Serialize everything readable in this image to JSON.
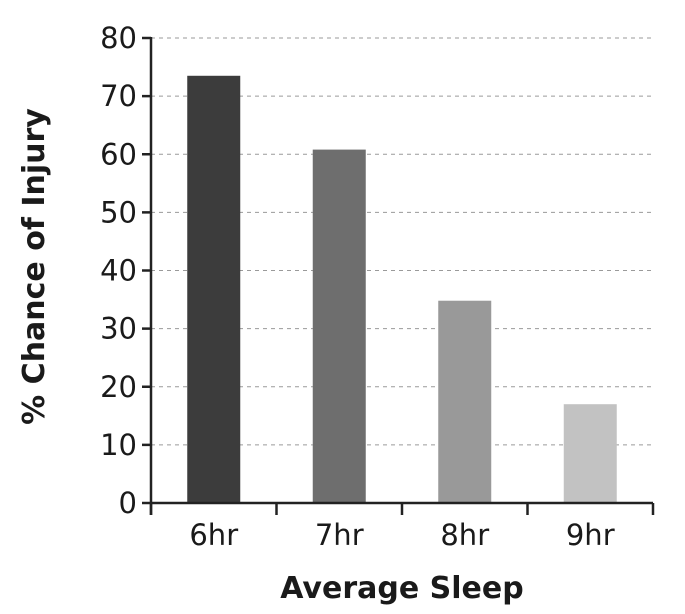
{
  "chart_data": {
    "type": "bar",
    "categories": [
      "6hr",
      "7hr",
      "8hr",
      "9hr"
    ],
    "values": [
      73.5,
      60.8,
      34.8,
      17.0
    ],
    "colors": [
      "#3c3c3c",
      "#6e6e6e",
      "#999999",
      "#c2c2c2"
    ],
    "title": "",
    "xlabel": "Average Sleep",
    "ylabel": "% Chance of Injury",
    "ylim": [
      0,
      80
    ],
    "yticks": [
      0,
      10,
      20,
      30,
      40,
      50,
      60,
      70,
      80
    ],
    "grid": true,
    "grid_style": "dashed horizontal",
    "legend": "none"
  }
}
